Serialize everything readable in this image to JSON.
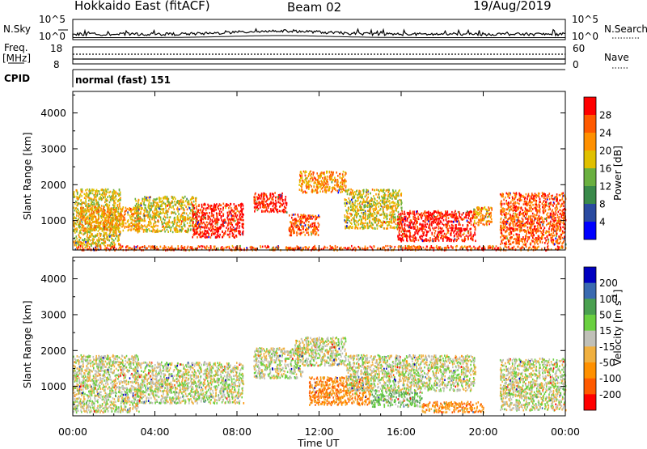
{
  "header": {
    "station": "Hokkaido East (fitACF)",
    "beam": "Beam 02",
    "date": "19/Aug/2019"
  },
  "top_panels": {
    "nsky_label": "N.Sky",
    "nsky_ticks": [
      "10^5",
      "10^0"
    ],
    "nsearch_label": "N.Search",
    "nsearch_ticks": [
      "10^5",
      "10^0"
    ],
    "freq_label": "Freq.",
    "freq_unit": "[MHz]",
    "freq_ticks": [
      "18",
      "8"
    ],
    "nave_label": "Nave",
    "nave_ticks": [
      "60",
      "0"
    ],
    "cpid_label": "CPID",
    "cpid_text": "normal (fast) 151"
  },
  "chart_data": [
    {
      "type": "heatmap",
      "name": "power-panel",
      "ylabel": "Slant Range [km]",
      "xlim": [
        0,
        24
      ],
      "ylim": [
        180,
        4600
      ],
      "yticks": [
        1000,
        2000,
        3000,
        4000
      ],
      "colorbar_label": "Power [dB]",
      "colorbar_ticks": [
        "28",
        "24",
        "20",
        "16",
        "12",
        "8",
        "4"
      ],
      "colors": [
        "#0000ff",
        "#2a4aa0",
        "#3a8a4a",
        "#6ab040",
        "#e0c000",
        "#ff9000",
        "#ff5a00",
        "#ff0000"
      ],
      "echo_regions": [
        {
          "t0": 0.0,
          "t1": 2.3,
          "r0": 300,
          "r1": 1900,
          "level": 4
        },
        {
          "t0": 0.3,
          "t1": 3.2,
          "r0": 750,
          "r1": 1400,
          "level": 5
        },
        {
          "t0": 3.0,
          "t1": 6.0,
          "r0": 700,
          "r1": 1700,
          "level": 4
        },
        {
          "t0": 5.8,
          "t1": 8.3,
          "r0": 550,
          "r1": 1500,
          "level": 7
        },
        {
          "t0": 8.8,
          "t1": 10.4,
          "r0": 1250,
          "r1": 1800,
          "level": 7
        },
        {
          "t0": 10.5,
          "t1": 12.0,
          "r0": 600,
          "r1": 1200,
          "level": 6
        },
        {
          "t0": 11.0,
          "t1": 13.3,
          "r0": 1800,
          "r1": 2400,
          "level": 5
        },
        {
          "t0": 13.2,
          "t1": 16.0,
          "r0": 800,
          "r1": 1900,
          "level": 4
        },
        {
          "t0": 15.8,
          "t1": 19.6,
          "r0": 450,
          "r1": 1300,
          "level": 7
        },
        {
          "t0": 19.5,
          "t1": 20.4,
          "r0": 900,
          "r1": 1400,
          "level": 5
        },
        {
          "t0": 20.8,
          "t1": 24.0,
          "r0": 350,
          "r1": 1800,
          "level": 6
        },
        {
          "t0": 0.0,
          "t1": 24.0,
          "r0": 200,
          "r1": 320,
          "level": 6
        }
      ]
    },
    {
      "type": "heatmap",
      "name": "velocity-panel",
      "ylabel": "Slant Range [km]",
      "xlabel": "Time UT",
      "xlim": [
        0,
        24
      ],
      "ylim": [
        180,
        4600
      ],
      "yticks": [
        1000,
        2000,
        3000,
        4000
      ],
      "xticks": [
        "00:00",
        "04:00",
        "08:00",
        "12:00",
        "16:00",
        "20:00",
        "00:00"
      ],
      "colorbar_label_main": "Velocity [m s",
      "colorbar_label_sup": "-1",
      "colorbar_label_end": "]",
      "colorbar_ticks": [
        "200",
        "100",
        "50",
        "15",
        "-15",
        "-50",
        "-100",
        "-200"
      ],
      "colors": [
        "#ff0000",
        "#ff5a00",
        "#ff9000",
        "#f0b040",
        "#c0c0b8",
        "#6ad040",
        "#4aa050",
        "#3a6ab0",
        "#0000c0"
      ],
      "echo_regions": [
        {
          "t0": 0.0,
          "t1": 3.2,
          "r0": 300,
          "r1": 1900,
          "level": 4
        },
        {
          "t0": 3.0,
          "t1": 8.3,
          "r0": 550,
          "r1": 1700,
          "level": 4
        },
        {
          "t0": 8.8,
          "t1": 11.2,
          "r0": 1250,
          "r1": 2100,
          "level": 4
        },
        {
          "t0": 10.8,
          "t1": 13.3,
          "r0": 1600,
          "r1": 2400,
          "level": 4
        },
        {
          "t0": 11.5,
          "t1": 14.5,
          "r0": 500,
          "r1": 1300,
          "level": 2
        },
        {
          "t0": 14.5,
          "t1": 17.0,
          "r0": 450,
          "r1": 900,
          "level": 5
        },
        {
          "t0": 13.3,
          "t1": 19.6,
          "r0": 900,
          "r1": 1900,
          "level": 4
        },
        {
          "t0": 17.0,
          "t1": 20.0,
          "r0": 300,
          "r1": 600,
          "level": 2
        },
        {
          "t0": 20.8,
          "t1": 24.0,
          "r0": 350,
          "r1": 1800,
          "level": 4
        }
      ]
    }
  ]
}
